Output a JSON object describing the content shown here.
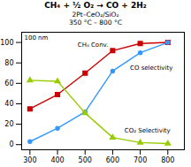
{
  "chart_data": {
    "type": "line",
    "title": "CH₄ + ½ O₂ → CO + 2H₂",
    "subtitle": "2Pt–CeO₂/SiO₂\n350 °C – 800 °C",
    "x": [
      300,
      400,
      500,
      600,
      700,
      800
    ],
    "series": [
      {
        "name": "CH₄ Conv.",
        "color": "#cc0000",
        "marker": "square",
        "values": [
          35,
          49,
          70,
          92,
          99,
          100
        ]
      },
      {
        "name": "CO selectivity",
        "color": "#3399ff",
        "marker": "circle",
        "values": [
          3,
          16,
          32,
          72,
          90,
          100
        ]
      },
      {
        "name": "CO₂ Selectivity",
        "color": "#99cc00",
        "marker": "triangle",
        "values": [
          63,
          62,
          31,
          7,
          2,
          1
        ]
      }
    ],
    "annotations": [
      {
        "text": "CH₄ Conv.",
        "x": 600,
        "y": 92
      },
      {
        "text": "CO selectivity",
        "x": 650,
        "y": 83
      },
      {
        "text": "CO₂ Selectivity",
        "x": 630,
        "y": 7
      },
      {
        "text": "100 nm"
      }
    ],
    "xlim": [
      270,
      860
    ],
    "ylim": [
      -5,
      110
    ],
    "xticks": [
      300,
      400,
      500,
      600,
      700,
      800
    ],
    "yticks": [
      0,
      20,
      40,
      60,
      80,
      100
    ]
  }
}
